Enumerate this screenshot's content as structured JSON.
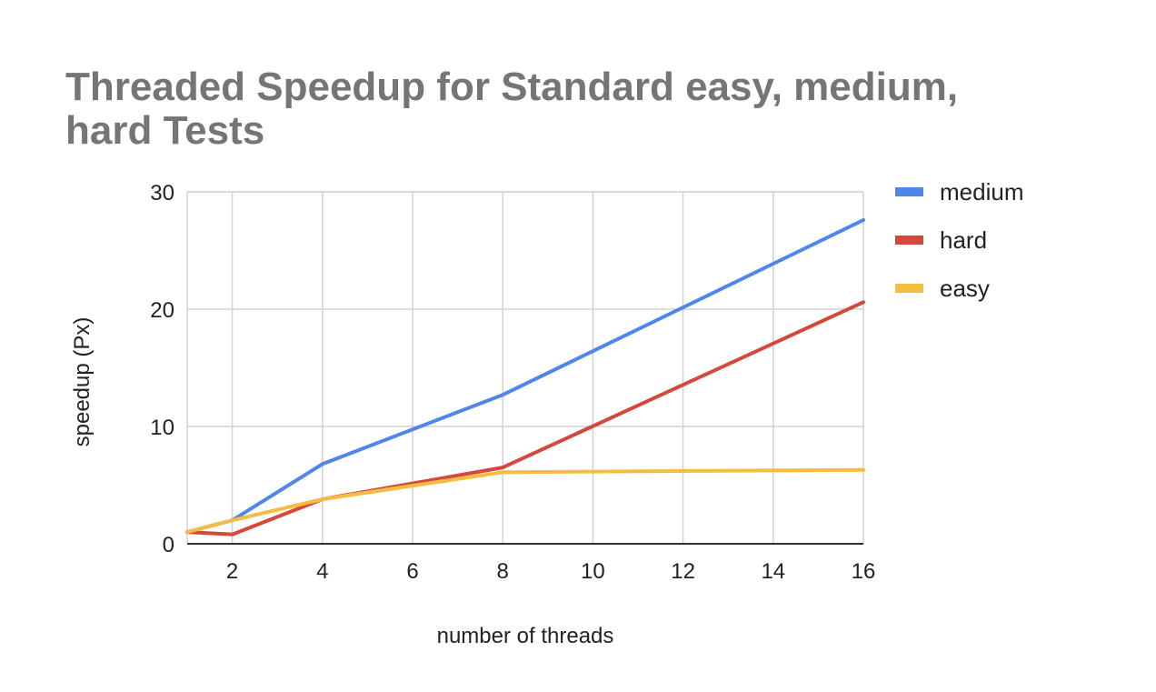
{
  "chart_data": {
    "type": "line",
    "title": "Threaded Speedup for Standard easy, medium, hard Tests",
    "xlabel": "number of threads",
    "ylabel": "speedup (Px)",
    "xlim": [
      1,
      16
    ],
    "ylim": [
      0,
      30
    ],
    "x_ticks": [
      2,
      4,
      6,
      8,
      10,
      12,
      14,
      16
    ],
    "y_ticks": [
      0,
      10,
      20,
      30
    ],
    "grid": true,
    "legend_position": "right",
    "x": [
      1,
      2,
      4,
      8,
      16
    ],
    "series": [
      {
        "name": "medium",
        "color": "#4f86ec",
        "values": [
          1.0,
          2.0,
          6.8,
          12.7,
          27.6
        ]
      },
      {
        "name": "hard",
        "color": "#d4493c",
        "values": [
          1.0,
          0.8,
          3.8,
          6.5,
          20.6
        ]
      },
      {
        "name": "easy",
        "color": "#f3bd42",
        "values": [
          1.0,
          2.0,
          3.8,
          6.1,
          6.3
        ]
      }
    ]
  }
}
